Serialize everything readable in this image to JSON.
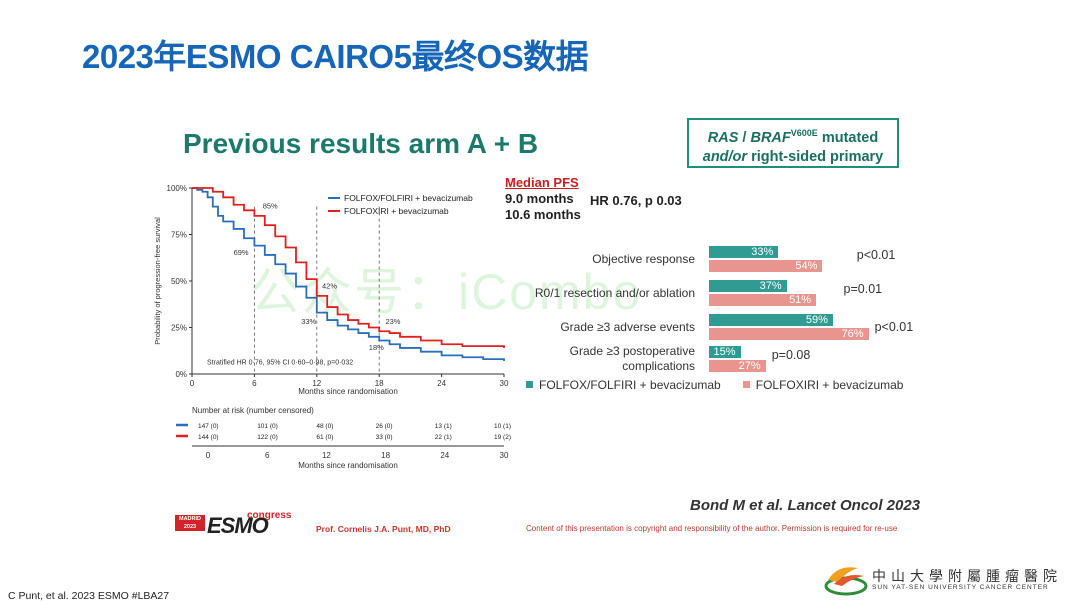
{
  "slide": {
    "title": "2023年ESMO CAIRO5最终OS数据",
    "subtitle": "Previous results arm A + B",
    "box_line1_a": "RAS",
    "box_line1_b": " / ",
    "box_line1_c": "BRAF",
    "box_line1_sup": "V600E",
    "box_line1_d": " mutated",
    "box_line2_a": "and/or",
    "box_line2_b": " right-sided primary",
    "median_pfs_label": "Median PFS",
    "median_pfs_a": "9.0 months",
    "median_pfs_b": "10.6 months",
    "hr_text": "HR 0.76, p 0.03",
    "reference": "Bond M et al. Lancet Oncol 2023",
    "presenter": "Prof. Cornelis J.A. Punt, MD, PhD",
    "copyright": "Content of this presentation is copyright and responsibility of the author. Permission is required for re-use",
    "citation": "C Punt, et al. 2023 ESMO #LBA27",
    "watermark": "公众号：iCombo",
    "logo_madrid": "MADRID 2023",
    "logo_esmo": "ESMO",
    "logo_congress": "congress",
    "hospital_cn": "中山大學附屬腫瘤醫院",
    "hospital_en": "SUN YAT-SEN UNIVERSITY CANCER CENTER",
    "colors": {
      "blue": "#2a6ebb",
      "red": "#e02020",
      "teal": "#2f9b92",
      "salmon": "#e89590",
      "title_blue": "#1565b8"
    }
  },
  "chart_data": [
    {
      "type": "line",
      "title": "",
      "xlabel": "Months since randomisation",
      "ylabel": "Probability of progression-free survival",
      "xlim": [
        0,
        30
      ],
      "ylim": [
        0,
        100
      ],
      "x_ticks": [
        0,
        6,
        12,
        18,
        24,
        30
      ],
      "y_ticks": [
        "0%",
        "25%",
        "50%",
        "75%",
        "100%"
      ],
      "legend": "top-right",
      "series": [
        {
          "name": "FOLFOX/FOLFIRI + bevacizumab",
          "color": "#2a6ebb",
          "x": [
            0,
            0.5,
            1,
            1.5,
            2,
            2.5,
            3,
            4,
            5,
            6,
            7,
            8,
            9,
            10,
            11,
            12,
            13,
            14,
            15,
            16,
            17,
            18,
            19,
            20,
            22,
            24,
            26,
            28,
            30
          ],
          "y": [
            100,
            99,
            98,
            95,
            90,
            85,
            82,
            78,
            73,
            69,
            64,
            59,
            54,
            47,
            41,
            33,
            29,
            26,
            24,
            22,
            20,
            18,
            16,
            14,
            12,
            10,
            9,
            8,
            7
          ]
        },
        {
          "name": "FOLFOXIRI + bevacizumab",
          "color": "#e02020",
          "x": [
            0,
            1,
            2,
            3,
            4,
            5,
            6,
            7,
            8,
            9,
            10,
            11,
            12,
            13,
            14,
            15,
            16,
            17,
            18,
            19,
            20,
            22,
            24,
            26,
            28,
            30
          ],
          "y": [
            100,
            100,
            98,
            95,
            91,
            88,
            85,
            80,
            74,
            68,
            60,
            51,
            42,
            36,
            32,
            29,
            27,
            25,
            23,
            22,
            20,
            18,
            16,
            15,
            15,
            14
          ]
        }
      ],
      "annotations": [
        "85%",
        "69%",
        "42%",
        "33%",
        "23%",
        "18%"
      ],
      "stats_text": "Stratified HR 0·76, 95% CI 0·60–0·98, p=0·032",
      "risk_table": {
        "title": "Number at risk (number censored)",
        "times": [
          0,
          6,
          12,
          18,
          24,
          30
        ],
        "rows": [
          {
            "color": "#2a6ebb",
            "values": [
              "147 (0)",
              "101 (0)",
              "48 (0)",
              "26 (0)",
              "13 (1)",
              "10 (1)"
            ]
          },
          {
            "color": "#e02020",
            "values": [
              "144 (0)",
              "122 (0)",
              "61 (0)",
              "33 (0)",
              "22 (1)",
              "19 (2)"
            ]
          }
        ],
        "xlabel": "Months since randomisation"
      }
    },
    {
      "type": "bar",
      "orientation": "horizontal",
      "title": "",
      "categories": [
        "Objective response",
        "R0/1 resection and/or ablation",
        "Grade ≥3 adverse events",
        "Grade ≥3 postoperative complications"
      ],
      "series": [
        {
          "name": "FOLFOX/FOLFIRI + bevacizumab",
          "color": "#2f9b92",
          "values": [
            33,
            37,
            59,
            15
          ]
        },
        {
          "name": "FOLFOXIRI + bevacizumab",
          "color": "#e89590",
          "values": [
            54,
            51,
            76,
            27
          ]
        }
      ],
      "p_values": [
        "p<0.01",
        "p=0.01",
        "p<0.01",
        "p=0.08"
      ],
      "legend": "bottom"
    }
  ]
}
